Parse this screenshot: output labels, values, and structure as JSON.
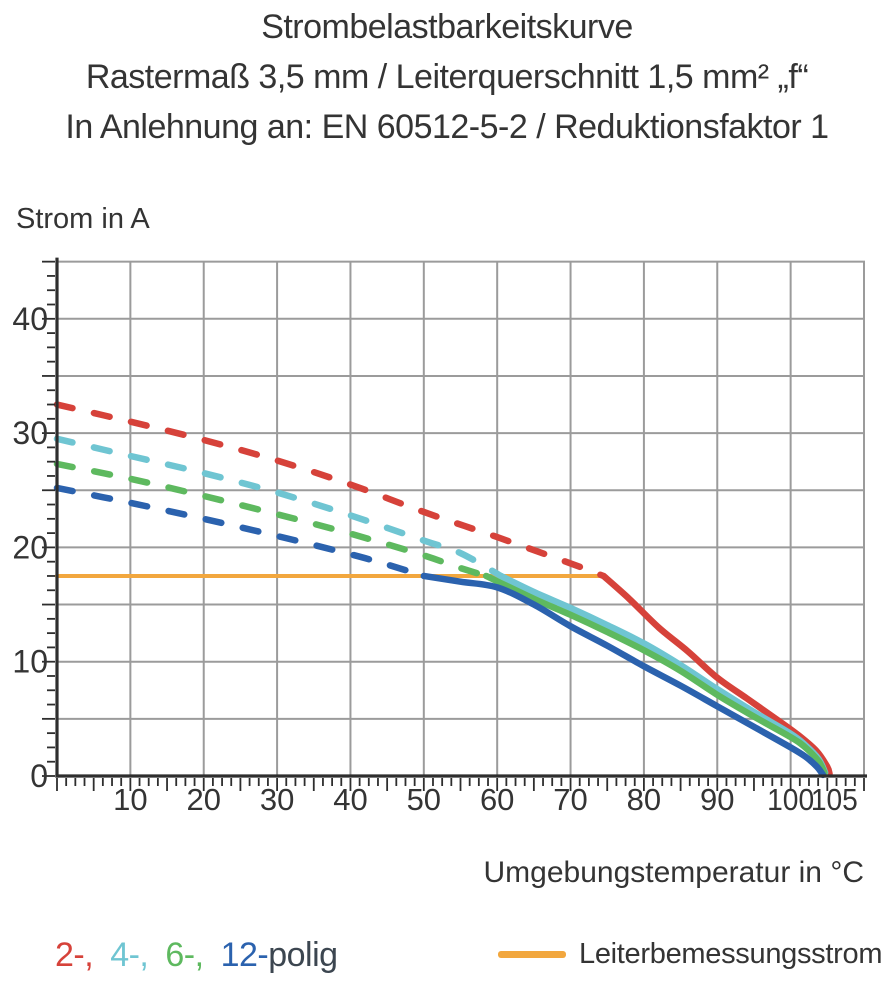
{
  "title": {
    "line1": "Strombelastbarkeitskurve",
    "line2": "Rastermaß 3,5 mm / Leiterquerschnitt 1,5 mm² „f“",
    "line3": "In Anlehnung an: EN 60512-5-2 / Reduktionsfaktor 1"
  },
  "legend": {
    "items": [
      {
        "label": "2-,",
        "color": "#d6423a"
      },
      {
        "label": "4-,",
        "color": "#6fc5d2"
      },
      {
        "label": "6-,",
        "color": "#5eb95f"
      },
      {
        "label": "12-",
        "color": "#2b62ae"
      }
    ],
    "suffix": "polig",
    "rated_label": "Leiterbemessungsstrom",
    "rated_color": "#f2a73e"
  },
  "chart_data": {
    "type": "line",
    "title": "Strombelastbarkeitskurve",
    "xlabel": "Umgebungstemperatur in °C",
    "ylabel": "Strom in A",
    "xlim": [
      0,
      110
    ],
    "ylim": [
      0,
      45
    ],
    "x_tick_labels": [
      10,
      20,
      30,
      40,
      50,
      60,
      70,
      80,
      90,
      100,
      105
    ],
    "y_tick_labels": [
      0,
      10,
      20,
      30,
      40
    ],
    "grid": {
      "x_step": 10,
      "y_step": 5,
      "color": "#9b9b9b",
      "on": true
    },
    "axis_color": "#2e2e2e",
    "tick_label_color": "#343434",
    "rated_current": {
      "label": "Leiterbemessungsstrom",
      "value": 17.5,
      "t_start": 0,
      "t_end": 74.5,
      "color": "#f2a73e"
    },
    "legend_position": "bottom",
    "series": [
      {
        "name": "2-polig",
        "color": "#d6423a",
        "dash_until": 74.5,
        "points": [
          [
            0,
            32.5
          ],
          [
            10,
            31.0
          ],
          [
            20,
            29.4
          ],
          [
            30,
            27.6
          ],
          [
            40,
            25.5
          ],
          [
            50,
            23.1
          ],
          [
            60,
            20.9
          ],
          [
            70,
            18.6
          ],
          [
            74.5,
            17.5
          ],
          [
            78,
            15.5
          ],
          [
            82,
            13.0
          ],
          [
            86,
            10.9
          ],
          [
            90,
            8.6
          ],
          [
            94,
            6.8
          ],
          [
            98,
            5.0
          ],
          [
            101,
            3.6
          ],
          [
            103.5,
            2.2
          ],
          [
            105,
            0.8
          ],
          [
            105.3,
            0.2
          ]
        ]
      },
      {
        "name": "4-polig",
        "color": "#6fc5d2",
        "dash_until": 60.5,
        "points": [
          [
            0,
            29.5
          ],
          [
            10,
            28.0
          ],
          [
            20,
            26.5
          ],
          [
            30,
            24.8
          ],
          [
            40,
            22.8
          ],
          [
            50,
            20.6
          ],
          [
            55,
            19.5
          ],
          [
            60.5,
            17.5
          ],
          [
            65,
            16.1
          ],
          [
            70,
            14.7
          ],
          [
            75,
            13.2
          ],
          [
            80,
            11.6
          ],
          [
            85,
            9.7
          ],
          [
            90,
            7.6
          ],
          [
            95,
            5.6
          ],
          [
            100,
            3.7
          ],
          [
            102,
            2.7
          ],
          [
            103.8,
            1.5
          ],
          [
            104.7,
            0.3
          ]
        ]
      },
      {
        "name": "6-polig",
        "color": "#5eb95f",
        "dash_until": 58.5,
        "points": [
          [
            0,
            27.3
          ],
          [
            10,
            26.0
          ],
          [
            20,
            24.5
          ],
          [
            30,
            22.9
          ],
          [
            40,
            21.2
          ],
          [
            50,
            19.3
          ],
          [
            54,
            18.4
          ],
          [
            58.5,
            17.5
          ],
          [
            65,
            15.5
          ],
          [
            70,
            14.1
          ],
          [
            75,
            12.6
          ],
          [
            80,
            11.0
          ],
          [
            85,
            9.2
          ],
          [
            90,
            7.1
          ],
          [
            95,
            5.2
          ],
          [
            100,
            3.4
          ],
          [
            102,
            2.5
          ],
          [
            103.8,
            1.3
          ],
          [
            104.6,
            0.3
          ]
        ]
      },
      {
        "name": "12-polig",
        "color": "#2b62ae",
        "dash_until": 50,
        "points": [
          [
            0,
            25.2
          ],
          [
            10,
            23.9
          ],
          [
            20,
            22.5
          ],
          [
            30,
            21.0
          ],
          [
            40,
            19.4
          ],
          [
            45,
            18.5
          ],
          [
            50,
            17.5
          ],
          [
            55,
            17.0
          ],
          [
            60,
            16.5
          ],
          [
            65,
            15.0
          ],
          [
            70,
            13.1
          ],
          [
            75,
            11.4
          ],
          [
            80,
            9.6
          ],
          [
            85,
            7.9
          ],
          [
            90,
            6.1
          ],
          [
            95,
            4.3
          ],
          [
            100,
            2.5
          ],
          [
            102,
            1.7
          ],
          [
            103.6,
            0.8
          ],
          [
            104.4,
            0.1
          ]
        ]
      }
    ]
  }
}
